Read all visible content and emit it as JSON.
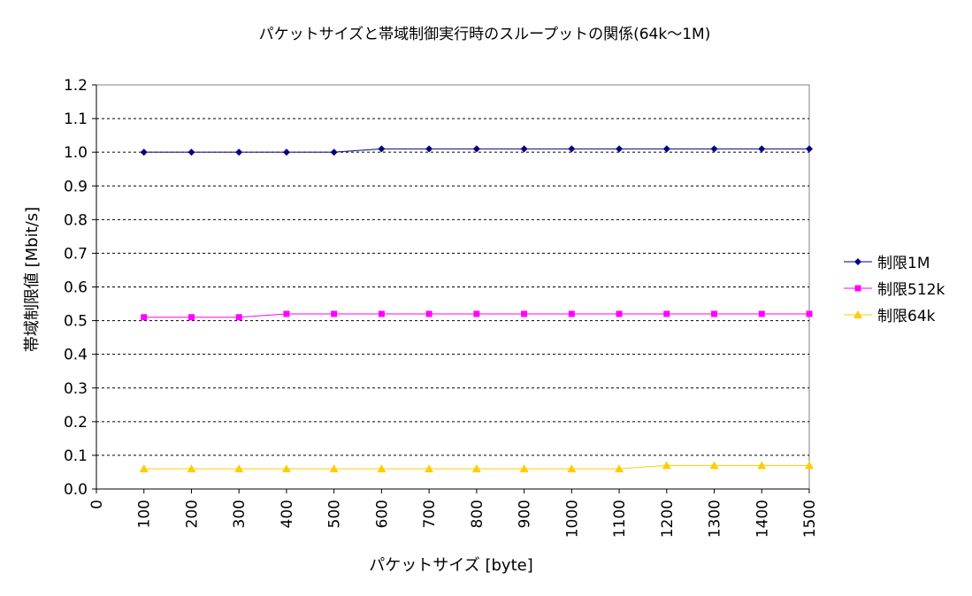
{
  "chart_data": {
    "type": "line",
    "title": "パケットサイズと帯域制御実行時のスループットの関係(64k～1M)",
    "xlabel": "パケットサイズ [byte]",
    "ylabel": "帯域制限値 [Mbit/s]",
    "x_ticks": [
      "0",
      "100",
      "200",
      "300",
      "400",
      "500",
      "600",
      "700",
      "800",
      "900",
      "1000",
      "1100",
      "1200",
      "1300",
      "1400",
      "1500"
    ],
    "x": [
      100,
      200,
      300,
      400,
      500,
      600,
      700,
      800,
      900,
      1000,
      1100,
      1200,
      1300,
      1400,
      1500
    ],
    "xlim": [
      0,
      1500
    ],
    "ylim": [
      0.0,
      1.2
    ],
    "y_ticks": [
      "0.0",
      "0.1",
      "0.2",
      "0.3",
      "0.4",
      "0.5",
      "0.6",
      "0.7",
      "0.8",
      "0.9",
      "1.0",
      "1.1",
      "1.2"
    ],
    "grid": "horizontal dashed",
    "legend_position": "right",
    "series": [
      {
        "name": "制限1M",
        "color": "#000080",
        "marker": "diamond",
        "values": [
          1.0,
          1.0,
          1.0,
          1.0,
          1.0,
          1.01,
          1.01,
          1.01,
          1.01,
          1.01,
          1.01,
          1.01,
          1.01,
          1.01,
          1.01
        ]
      },
      {
        "name": "制限512k",
        "color": "#ff00ff",
        "marker": "square",
        "values": [
          0.51,
          0.51,
          0.51,
          0.52,
          0.52,
          0.52,
          0.52,
          0.52,
          0.52,
          0.52,
          0.52,
          0.52,
          0.52,
          0.52,
          0.52
        ]
      },
      {
        "name": "制限64k",
        "color": "#ffcc00",
        "marker": "triangle",
        "values": [
          0.06,
          0.06,
          0.06,
          0.06,
          0.06,
          0.06,
          0.06,
          0.06,
          0.06,
          0.06,
          0.06,
          0.07,
          0.07,
          0.07,
          0.07
        ]
      }
    ]
  }
}
